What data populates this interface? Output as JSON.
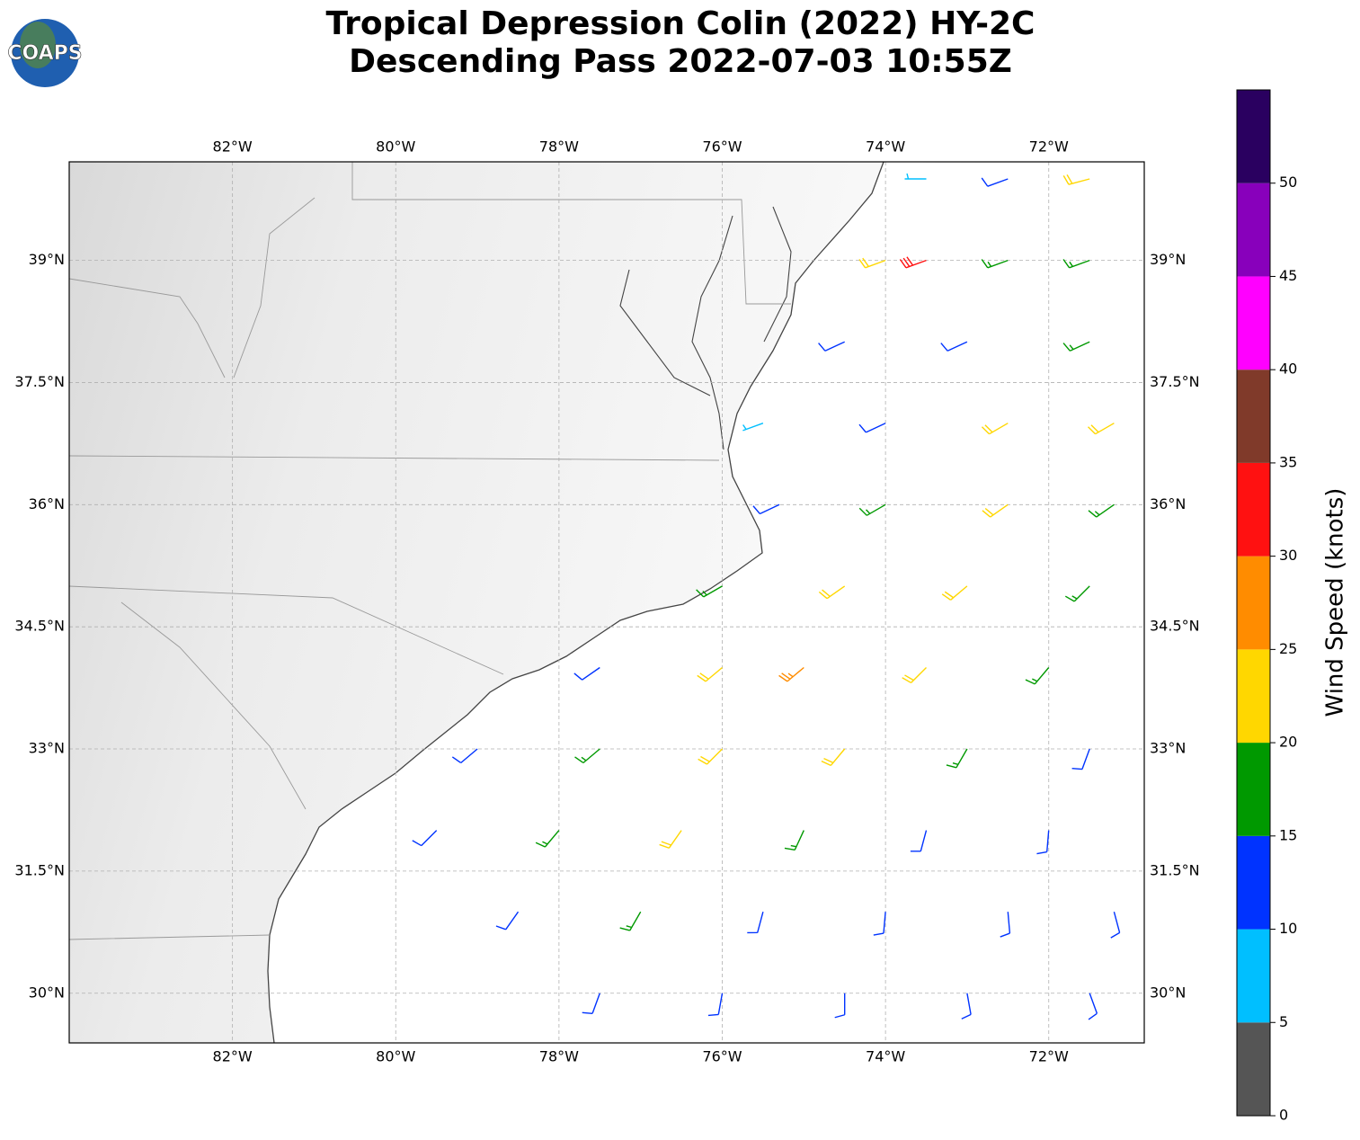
{
  "chart_data": {
    "type": "barbs",
    "logo": "COAPS",
    "title": "Tropical Depression Colin (2022) HY-2C",
    "subtitle": "Descending Pass 2022-07-03 10:55Z",
    "xlim": [
      -84,
      -70.83
    ],
    "ylim": [
      29.39,
      40.21
    ],
    "xticks": [
      {
        "value": -82,
        "label": "82°W"
      },
      {
        "value": -80,
        "label": "80°W"
      },
      {
        "value": -78,
        "label": "78°W"
      },
      {
        "value": -76,
        "label": "76°W"
      },
      {
        "value": -74,
        "label": "74°W"
      },
      {
        "value": -72,
        "label": "72°W"
      }
    ],
    "yticks": [
      {
        "value": 30,
        "label": "30°N"
      },
      {
        "value": 31.5,
        "label": "31.5°N"
      },
      {
        "value": 33,
        "label": "33°N"
      },
      {
        "value": 34.5,
        "label": "34.5°N"
      },
      {
        "value": 36,
        "label": "36°N"
      },
      {
        "value": 37.5,
        "label": "37.5°N"
      },
      {
        "value": 39,
        "label": "39°N"
      }
    ],
    "grid": true,
    "barbs": {
      "lon": [
        -77.5,
        -76,
        -74.5,
        -73,
        -71.5,
        -78.5,
        -77,
        -75.5,
        -74,
        -72.5,
        -71.2,
        -79.5,
        -78,
        -76.5,
        -75,
        -73.5,
        -72,
        -79,
        -77.5,
        -76,
        -74.5,
        -73,
        -71.5,
        -77.5,
        -76,
        -75,
        -73.5,
        -72,
        -76,
        -74.5,
        -73,
        -71.5,
        -75.3,
        -74,
        -72.5,
        -71.2,
        -75.5,
        -74,
        -72.5,
        -71.2,
        -74.5,
        -73,
        -71.5,
        -74,
        -73.5,
        -72.5,
        -71.5,
        -73.5,
        -72.5,
        -71.5
      ],
      "lat": [
        30,
        30,
        30,
        30,
        30,
        31,
        31,
        31,
        31,
        31,
        31,
        32,
        32,
        32,
        32,
        32,
        32,
        33,
        33,
        33,
        33,
        33,
        33,
        34,
        34,
        34,
        34,
        34,
        35,
        35,
        35,
        35,
        36,
        36,
        36,
        36,
        37,
        37,
        37,
        37,
        38,
        38,
        38,
        39,
        39,
        39,
        39,
        40,
        40,
        40
      ],
      "speed": [
        12,
        12,
        12,
        13,
        13,
        13,
        17,
        14,
        13,
        13,
        13,
        13,
        17,
        22,
        18,
        14,
        13,
        12,
        18,
        23,
        24,
        18,
        14,
        13,
        22,
        26,
        22,
        18,
        16,
        22,
        21,
        18,
        13,
        19,
        22,
        18,
        8,
        13,
        21,
        23,
        12,
        14,
        18,
        22,
        31,
        18,
        16,
        9,
        13,
        22
      ],
      "direction": [
        200,
        190,
        180,
        170,
        160,
        215,
        210,
        195,
        185,
        175,
        165,
        225,
        220,
        215,
        205,
        195,
        185,
        230,
        230,
        225,
        220,
        210,
        200,
        235,
        230,
        230,
        225,
        220,
        240,
        235,
        230,
        225,
        245,
        240,
        235,
        235,
        250,
        245,
        240,
        240,
        245,
        245,
        245,
        250,
        250,
        250,
        250,
        270,
        250,
        255
      ]
    },
    "colorbar": {
      "label": "Wind Speed (knots)",
      "bounds": [
        0,
        5,
        10,
        15,
        20,
        25,
        30,
        35,
        40,
        45,
        50,
        55
      ],
      "colors": [
        "#555555",
        "#00bfff",
        "#0033ff",
        "#009900",
        "#ffd700",
        "#ff8c00",
        "#ff1111",
        "#803a2a",
        "#ff00ff",
        "#8800bb",
        "#2a0060"
      ],
      "ticks": [
        0,
        5,
        10,
        15,
        20,
        25,
        30,
        35,
        40,
        45,
        50
      ]
    }
  }
}
